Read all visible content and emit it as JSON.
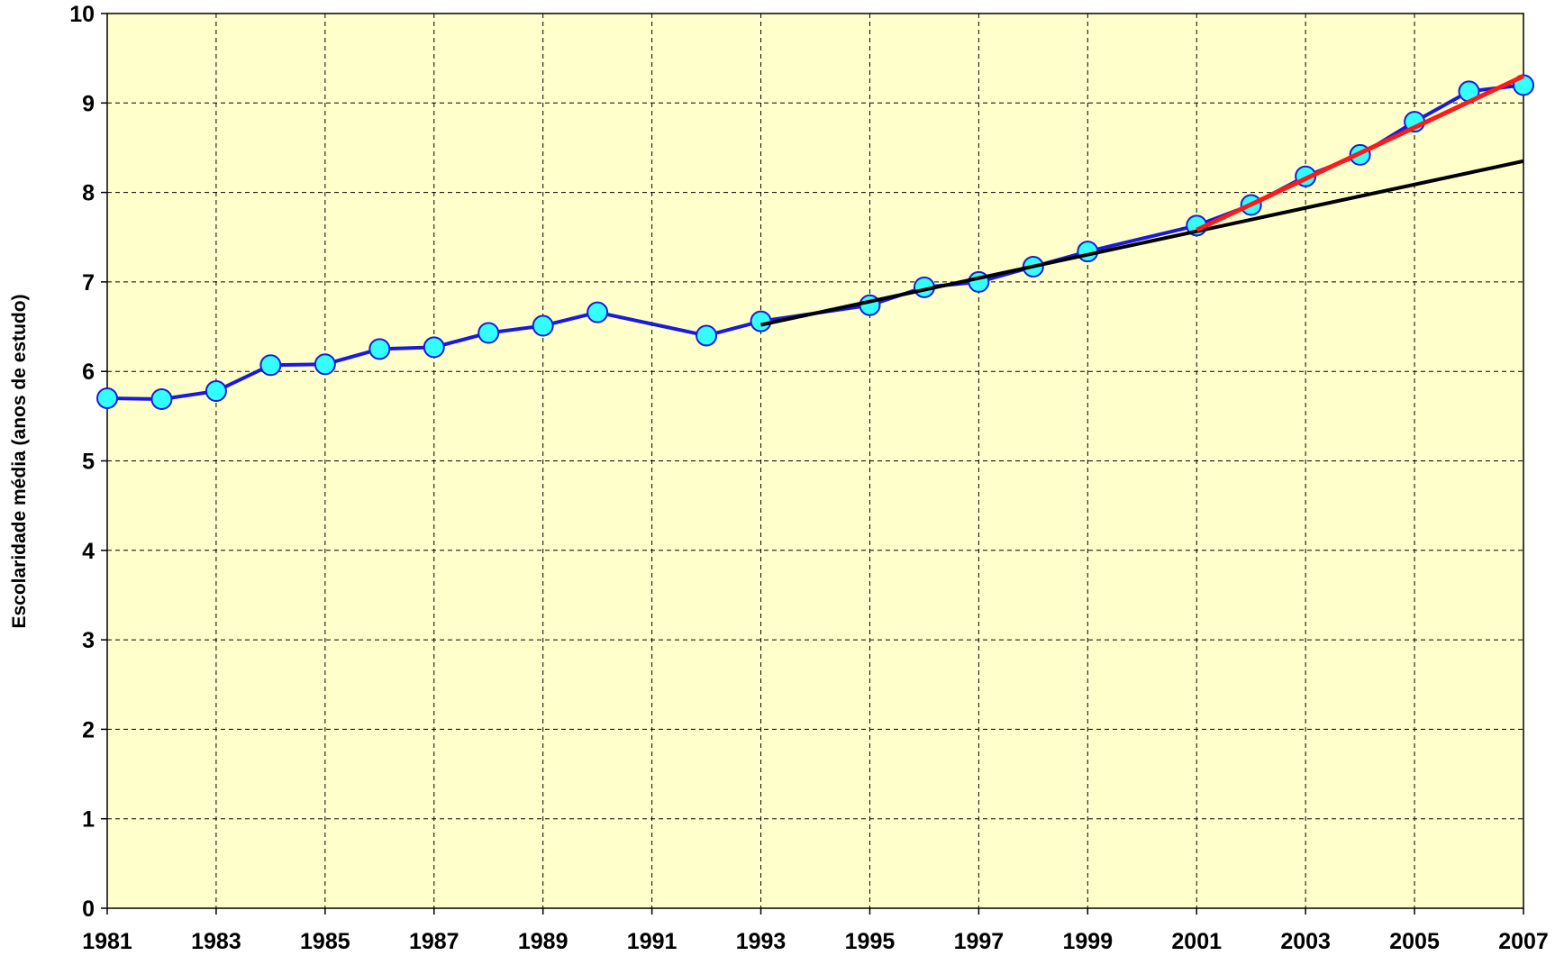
{
  "chart_data": {
    "type": "line",
    "ylabel": "Escolaridade média (anos de estudo)",
    "xlim": [
      1981,
      2007
    ],
    "xticks": [
      1981,
      1983,
      1985,
      1987,
      1989,
      1991,
      1993,
      1995,
      1997,
      1999,
      2001,
      2003,
      2005,
      2007
    ],
    "ylim": [
      0,
      10
    ],
    "yticks": [
      0,
      1,
      2,
      3,
      4,
      5,
      6,
      7,
      8,
      9,
      10
    ],
    "grid": true,
    "background": "#ffffcc",
    "series": [
      {
        "color": "#1a1adc",
        "marker_color": "#33ffff",
        "markers": true,
        "x": [
          1981,
          1982,
          1983,
          1984,
          1985,
          1986,
          1987,
          1988,
          1989,
          1990,
          1992,
          1993,
          1995,
          1996,
          1997,
          1998,
          1999,
          2001,
          2002,
          2003,
          2004,
          2005,
          2006,
          2007
        ],
        "values": [
          5.7,
          5.69,
          5.78,
          6.07,
          6.08,
          6.25,
          6.27,
          6.43,
          6.51,
          6.66,
          6.4,
          6.56,
          6.74,
          6.94,
          7.0,
          7.17,
          7.34,
          7.63,
          7.86,
          8.18,
          8.42,
          8.79,
          9.13,
          9.2
        ]
      },
      {
        "color": "#000000",
        "markers": false,
        "x": [
          1993,
          2007
        ],
        "values": [
          6.52,
          8.35
        ]
      },
      {
        "color": "#ff1a1a",
        "markers": false,
        "x": [
          2001,
          2007
        ],
        "values": [
          7.58,
          9.3
        ]
      }
    ]
  }
}
